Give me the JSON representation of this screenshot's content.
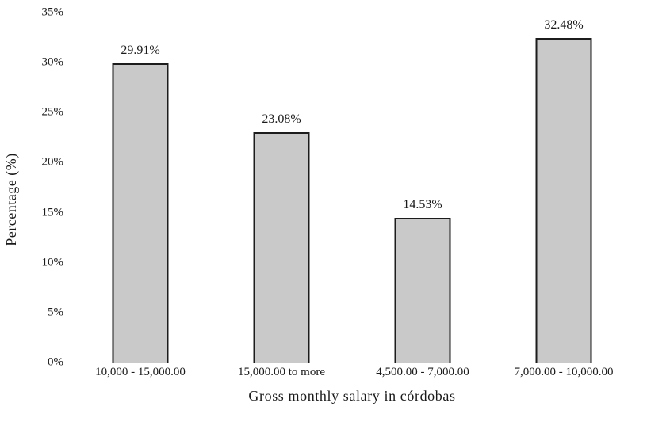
{
  "chart_data": {
    "type": "bar",
    "title": "",
    "categories": [
      "10,000 - 15,000.00",
      "15,000.00 to more",
      "4,500.00 - 7,000.00",
      "7,000.00 - 10,000.00"
    ],
    "values": [
      29.91,
      23.08,
      14.53,
      32.48
    ],
    "data_labels": [
      "29.91%",
      "23.08%",
      "14.53%",
      "32.48%"
    ],
    "xlabel": "Gross monthly salary in córdobas",
    "ylabel": "Percentage (%)",
    "ylim": [
      0,
      35
    ],
    "ytick_step": 5,
    "ytick_labels": [
      "0%",
      "5%",
      "10%",
      "15%",
      "20%",
      "25%",
      "30%",
      "35%"
    ],
    "grid": false,
    "legend": false,
    "colors": {
      "bar_fill": "#c9c9c9",
      "bar_border": "#1c1c1c",
      "axis_line": "#d9d9d9",
      "text": "#1a1a1a"
    }
  }
}
